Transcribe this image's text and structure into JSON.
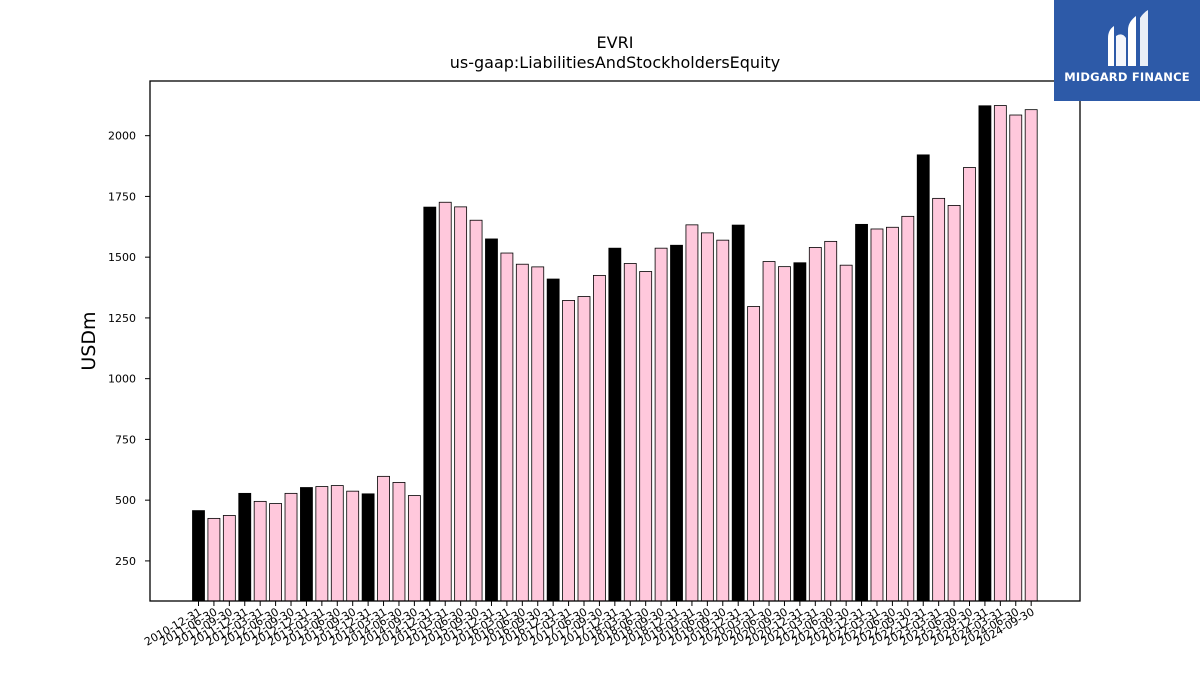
{
  "chart_data": {
    "type": "bar",
    "title": "EVRI",
    "subtitle": "us-gaap:LiabilitiesAndStockholdersEquity",
    "xlabel": "",
    "ylabel": "USDm",
    "ylim": [
      85,
      2225
    ],
    "yticks": [
      250,
      500,
      750,
      1000,
      1250,
      1500,
      1750,
      2000
    ],
    "grid": false,
    "categories": [
      "2010-12-31",
      "2011-06-30",
      "2011-09-30",
      "2011-12-31",
      "2012-03-31",
      "2012-06-30",
      "2012-09-30",
      "2012-12-31",
      "2013-03-31",
      "2013-06-30",
      "2013-09-30",
      "2013-12-31",
      "2014-03-31",
      "2014-06-30",
      "2014-09-30",
      "2014-12-31",
      "2015-03-31",
      "2015-06-30",
      "2015-09-30",
      "2015-12-31",
      "2016-03-31",
      "2016-06-30",
      "2016-09-30",
      "2016-12-31",
      "2017-03-31",
      "2017-06-30",
      "2017-09-30",
      "2017-12-31",
      "2018-03-31",
      "2018-06-30",
      "2018-09-30",
      "2018-12-31",
      "2019-03-31",
      "2019-06-30",
      "2019-09-30",
      "2019-12-31",
      "2020-03-31",
      "2020-06-30",
      "2020-09-30",
      "2020-12-31",
      "2021-03-31",
      "2021-06-30",
      "2021-09-30",
      "2021-12-31",
      "2022-03-31",
      "2022-06-30",
      "2022-09-30",
      "2022-12-31",
      "2023-03-31",
      "2023-06-30",
      "2023-09-30",
      "2023-12-31",
      "2024-03-31",
      "2024-06-30",
      "2024-09-30"
    ],
    "values": [
      457,
      425,
      437,
      528,
      495,
      486,
      528,
      552,
      556,
      560,
      537,
      526,
      598,
      573,
      519,
      1706,
      1726,
      1707,
      1652,
      1575,
      1517,
      1471,
      1460,
      1410,
      1322,
      1338,
      1425,
      1537,
      1474,
      1441,
      1537,
      1549,
      1633,
      1600,
      1570,
      1632,
      1297,
      1482,
      1461,
      1477,
      1540,
      1565,
      1467,
      1635,
      1616,
      1623,
      1668,
      1921,
      1742,
      1713,
      1869,
      2123,
      2124,
      2085,
      2107
    ],
    "annual_color": "#000000",
    "quarter_color": "#ffc8dc",
    "annual_months": "12"
  },
  "logo": {
    "text": "MIDGARD FINANCE",
    "bg": "#2d5aa8"
  }
}
